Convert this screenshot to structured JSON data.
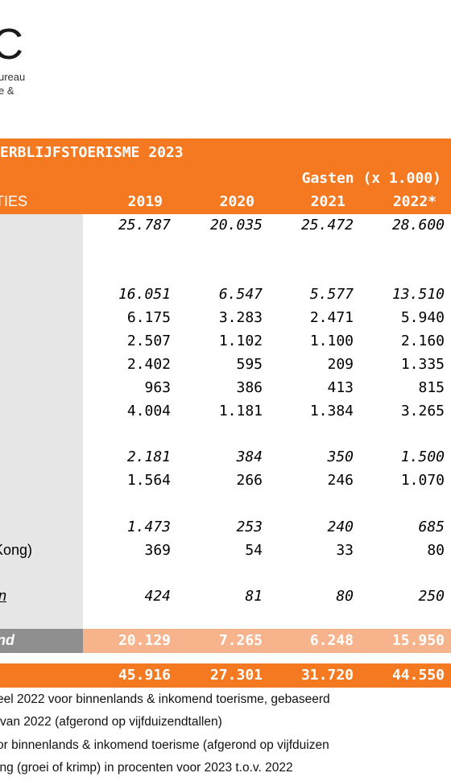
{
  "logo": {
    "mark": "C",
    "sub_line1": "ureau",
    "sub_line2": "e &"
  },
  "table": {
    "title": "ERBLIJFSTOERISME 2023",
    "group_header": "Gasten (x 1.000)",
    "column_label": "TIES",
    "years": [
      "2019",
      "2020",
      "2021",
      "2022*"
    ],
    "rows": [
      {
        "label": "",
        "values": [
          "25.787",
          "20.035",
          "25.472",
          "28.600"
        ],
        "italic": true
      },
      {
        "label": "",
        "values": [
          "16.051",
          "6.547",
          "5.577",
          "13.510"
        ],
        "italic": true
      },
      {
        "label": "",
        "values": [
          "6.175",
          "3.283",
          "2.471",
          "5.940"
        ],
        "italic": false
      },
      {
        "label": "",
        "values": [
          "2.507",
          "1.102",
          "1.100",
          "2.160"
        ],
        "italic": false
      },
      {
        "label": "",
        "values": [
          "2.402",
          "595",
          "209",
          "1.335"
        ],
        "italic": false
      },
      {
        "label": "",
        "values": [
          "963",
          "386",
          "413",
          "815"
        ],
        "italic": false
      },
      {
        "label": "",
        "values": [
          "4.004",
          "1.181",
          "1.384",
          "3.265"
        ],
        "italic": false
      },
      {
        "label": "",
        "values": [
          "2.181",
          "384",
          "350",
          "1.500"
        ],
        "italic": true
      },
      {
        "label": "",
        "values": [
          "1.564",
          "266",
          "246",
          "1.070"
        ],
        "italic": false
      },
      {
        "label": "",
        "values": [
          "1.473",
          "253",
          "240",
          "685"
        ],
        "italic": true
      },
      {
        "label": "Kong)",
        "values": [
          "369",
          "54",
          "33",
          "80"
        ],
        "italic": false
      },
      {
        "label": "n",
        "values": [
          "424",
          "81",
          "80",
          "250"
        ],
        "italic": true
      }
    ],
    "subtotal": {
      "label": "nd",
      "values": [
        "20.129",
        "7.265",
        "6.248",
        "15.950"
      ]
    },
    "total": {
      "values": [
        "45.916",
        "27.301",
        "31.720",
        "44.550"
      ]
    }
  },
  "notes": [
    "eel 2022 voor binnenlands & inkomend toerisme, gebaseerd",
    "van 2022 (afgerond op vijfduizendtallen)",
    "or binnenlands & inkomend toerisme (afgerond op vijfduizen",
    "ing (groei of krimp) in procenten voor 2023 t.o.v. 2022"
  ],
  "colors": {
    "orange": "#f47920",
    "light_orange": "#f7b38c",
    "gray": "#8f8f8f",
    "light_gray": "#e6e6e6"
  }
}
